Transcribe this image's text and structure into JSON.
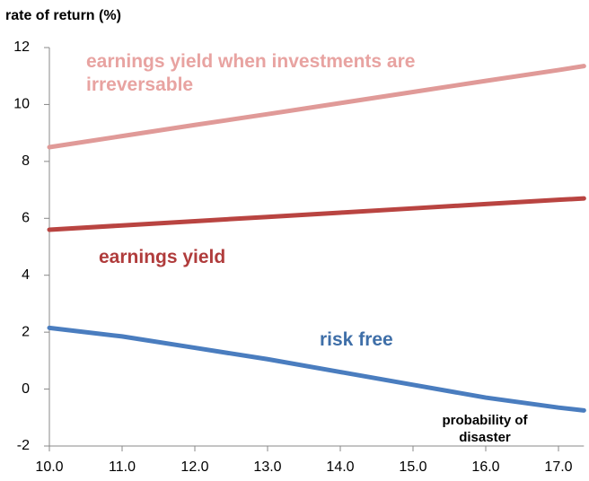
{
  "chart_data": {
    "type": "line",
    "y_label": "rate of return (%)",
    "x_label": "probability of disaster",
    "x": [
      10,
      11,
      12,
      13,
      14,
      15,
      16,
      17,
      17.35
    ],
    "series": [
      {
        "name": "earnings yield when investments are irreversable",
        "color": "#e09a98",
        "label_color": "#e8a3a1",
        "values": [
          8.5,
          8.89,
          9.28,
          9.66,
          10.05,
          10.44,
          10.83,
          11.21,
          11.35
        ]
      },
      {
        "name": "earnings yield",
        "color": "#b94441",
        "label_color": "#b03c3c",
        "values": [
          5.6,
          5.75,
          5.9,
          6.05,
          6.2,
          6.35,
          6.5,
          6.65,
          6.7
        ]
      },
      {
        "name": "risk free",
        "color": "#4a7dbf",
        "label_color": "#3f6fa8",
        "values": [
          2.15,
          1.85,
          1.45,
          1.05,
          0.6,
          0.15,
          -0.3,
          -0.65,
          -0.75
        ]
      }
    ],
    "xlim": [
      10,
      17.35
    ],
    "xticks": [
      {
        "value": 10,
        "label": "10.0"
      },
      {
        "value": 11,
        "label": "11.0"
      },
      {
        "value": 12,
        "label": "12.0"
      },
      {
        "value": 13,
        "label": "13.0"
      },
      {
        "value": 14,
        "label": "14.0"
      },
      {
        "value": 15,
        "label": "15.0"
      },
      {
        "value": 16,
        "label": "16.0"
      },
      {
        "value": 17,
        "label": "17.0"
      }
    ],
    "ylim": [
      -2,
      12
    ],
    "yticks": [
      -2,
      0,
      2,
      4,
      6,
      8,
      10,
      12
    ],
    "grid": false
  }
}
